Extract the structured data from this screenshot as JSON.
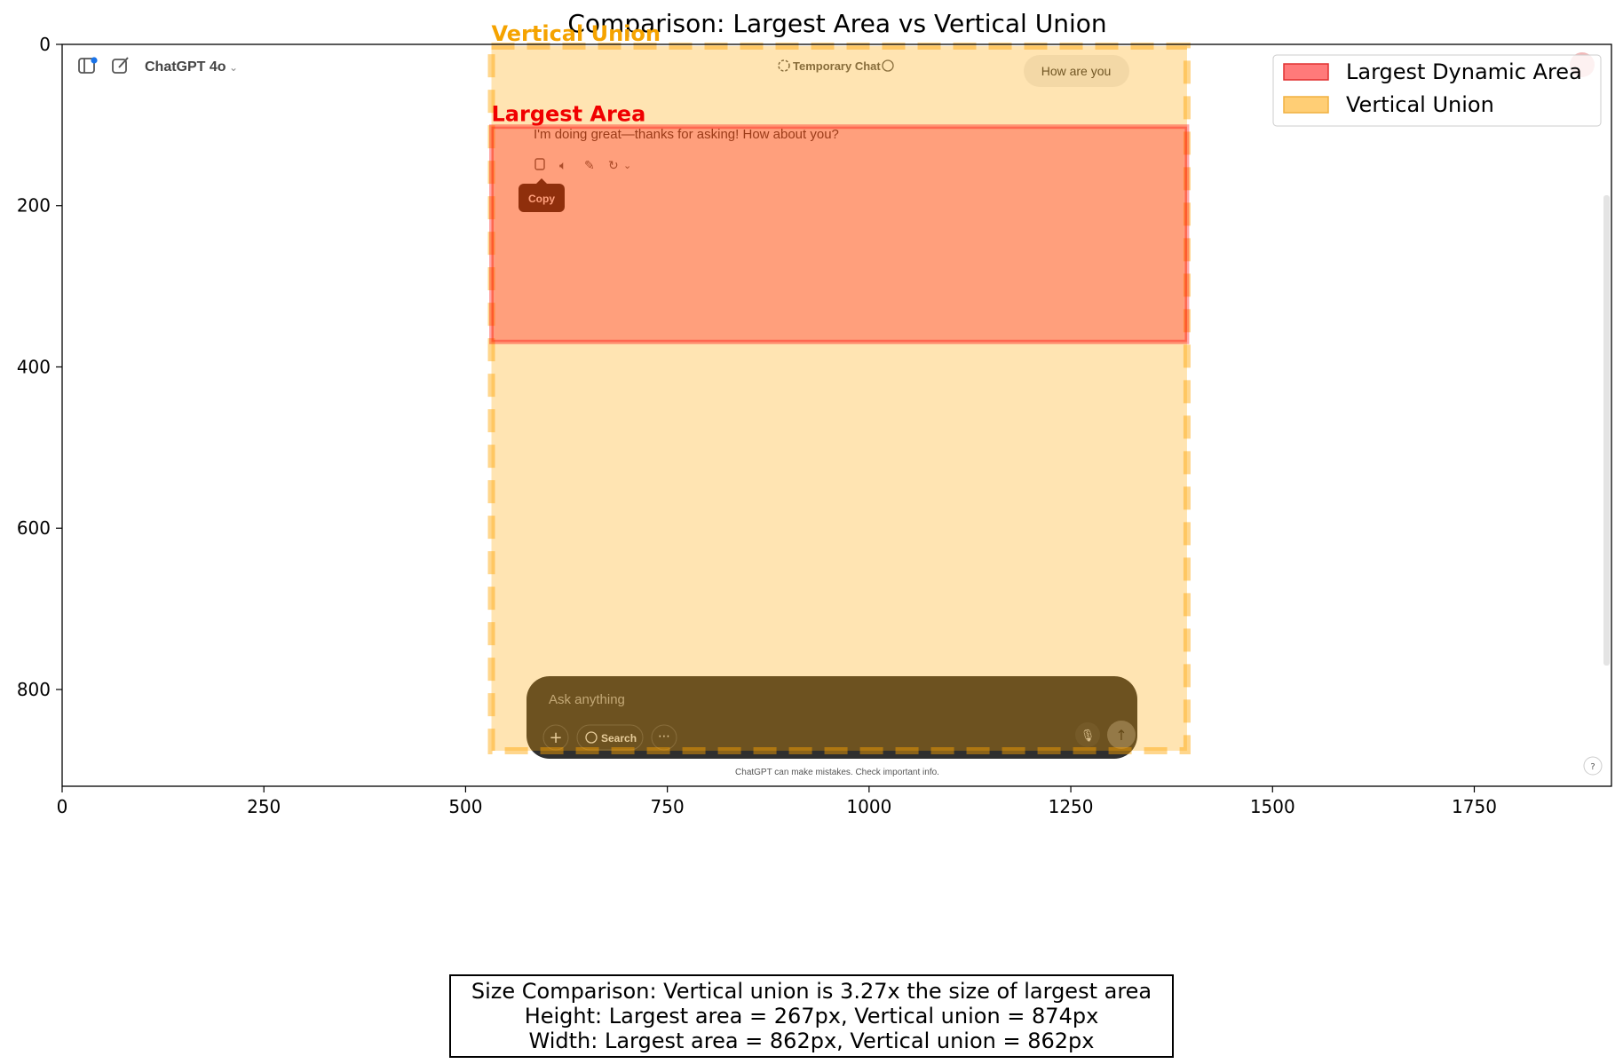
{
  "chart_data": {
    "type": "image-overlay",
    "title": "Comparison: Largest Area vs Vertical Union",
    "xlim": [
      0,
      1920
    ],
    "ylim": [
      920,
      0
    ],
    "x_ticks": [
      0,
      250,
      500,
      750,
      1000,
      1250,
      1500,
      1750
    ],
    "y_ticks": [
      0,
      200,
      400,
      600,
      800
    ],
    "legend": {
      "placement": "top-right",
      "entries": [
        {
          "label": "Largest Dynamic Area",
          "color": "#ff6b6b"
        },
        {
          "label": "Vertical Union",
          "color": "#ffc966"
        }
      ]
    },
    "regions": [
      {
        "name": "Vertical Union",
        "label": "Vertical Union",
        "x0": 532,
        "y0": 2,
        "x1": 1394,
        "y1": 876,
        "color": "#ffa500",
        "style": "dashed"
      },
      {
        "name": "Largest Area",
        "label": "Largest Area",
        "x0": 532,
        "y0": 102,
        "x1": 1394,
        "y1": 369,
        "color": "#ff0000",
        "style": "solid"
      }
    ]
  },
  "screenshot": {
    "model_label": "ChatGPT 4o",
    "temporary_chat": "Temporary Chat",
    "user_message": "How are you",
    "assistant_message": "I'm doing great—thanks for asking! How about you?",
    "tooltip": "Copy",
    "input_placeholder": "Ask anything",
    "search_label": "Search",
    "disclaimer": "ChatGPT can make mistakes. Check important info.",
    "help": "?"
  },
  "summary": {
    "line1": "Size Comparison: Vertical union is 3.27x the size of largest area",
    "line2": "Height: Largest area = 267px, Vertical union = 874px",
    "line3": "Width: Largest area = 862px, Vertical union = 862px"
  }
}
